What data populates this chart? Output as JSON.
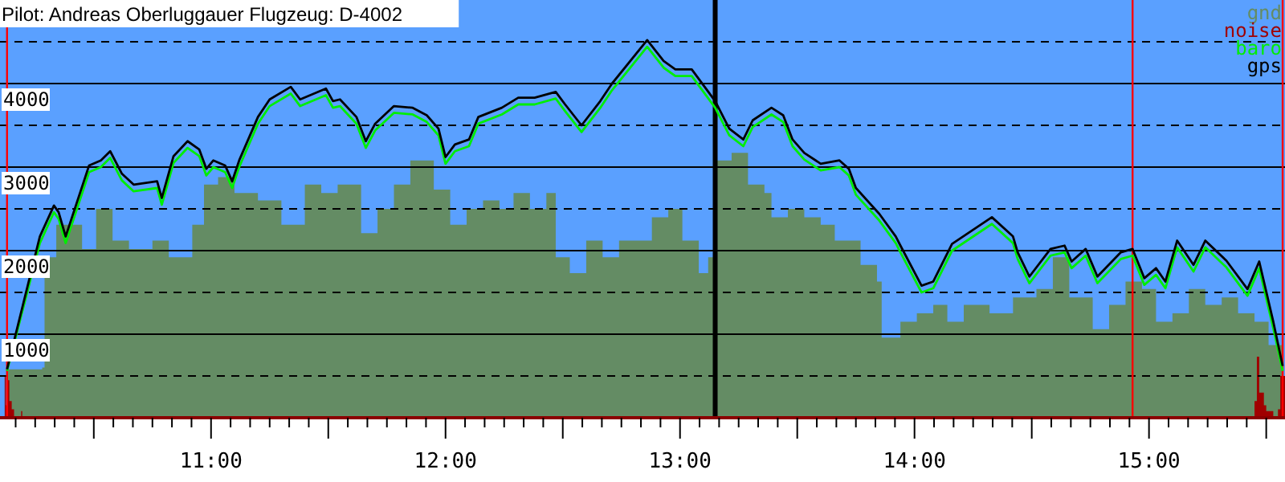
{
  "chart_data": {
    "type": "line",
    "title": "Pilot: Andreas Oberluggauer Flugzeug: D-4002",
    "xlim": [
      10.1,
      15.58
    ],
    "ylim": [
      0,
      5000
    ],
    "xticks": [
      {
        "value": 10.1667,
        "label": null
      },
      {
        "value": 10.25,
        "label": null
      },
      {
        "value": 10.3333,
        "label": null
      },
      {
        "value": 10.4167,
        "label": null
      },
      {
        "value": 10.5,
        "label": null
      },
      {
        "value": 10.5833,
        "label": null
      },
      {
        "value": 10.6667,
        "label": null
      },
      {
        "value": 10.75,
        "label": null
      },
      {
        "value": 10.8333,
        "label": null
      },
      {
        "value": 10.9167,
        "label": null
      },
      {
        "value": 11,
        "label": "11:00"
      },
      {
        "value": 11.0833,
        "label": null
      },
      {
        "value": 11.1667,
        "label": null
      },
      {
        "value": 11.25,
        "label": null
      },
      {
        "value": 11.3333,
        "label": null
      },
      {
        "value": 11.4167,
        "label": null
      },
      {
        "value": 11.5,
        "label": null
      },
      {
        "value": 11.5833,
        "label": null
      },
      {
        "value": 11.6667,
        "label": null
      },
      {
        "value": 11.75,
        "label": null
      },
      {
        "value": 11.8333,
        "label": null
      },
      {
        "value": 11.9167,
        "label": null
      },
      {
        "value": 12,
        "label": "12:00"
      },
      {
        "value": 12.0833,
        "label": null
      },
      {
        "value": 12.1667,
        "label": null
      },
      {
        "value": 12.25,
        "label": null
      },
      {
        "value": 12.3333,
        "label": null
      },
      {
        "value": 12.4167,
        "label": null
      },
      {
        "value": 12.5,
        "label": null
      },
      {
        "value": 12.5833,
        "label": null
      },
      {
        "value": 12.6667,
        "label": null
      },
      {
        "value": 12.75,
        "label": null
      },
      {
        "value": 12.8333,
        "label": null
      },
      {
        "value": 12.9167,
        "label": null
      },
      {
        "value": 13,
        "label": "13:00"
      },
      {
        "value": 13.0833,
        "label": null
      },
      {
        "value": 13.1667,
        "label": null
      },
      {
        "value": 13.25,
        "label": null
      },
      {
        "value": 13.3333,
        "label": null
      },
      {
        "value": 13.4167,
        "label": null
      },
      {
        "value": 13.5,
        "label": null
      },
      {
        "value": 13.5833,
        "label": null
      },
      {
        "value": 13.6667,
        "label": null
      },
      {
        "value": 13.75,
        "label": null
      },
      {
        "value": 13.8333,
        "label": null
      },
      {
        "value": 13.9167,
        "label": null
      },
      {
        "value": 14,
        "label": "14:00"
      },
      {
        "value": 14.0833,
        "label": null
      },
      {
        "value": 14.1667,
        "label": null
      },
      {
        "value": 14.25,
        "label": null
      },
      {
        "value": 14.3333,
        "label": null
      },
      {
        "value": 14.4167,
        "label": null
      },
      {
        "value": 14.5,
        "label": null
      },
      {
        "value": 14.5833,
        "label": null
      },
      {
        "value": 14.6667,
        "label": null
      },
      {
        "value": 14.75,
        "label": null
      },
      {
        "value": 14.8333,
        "label": null
      },
      {
        "value": 14.9167,
        "label": null
      },
      {
        "value": 15,
        "label": "15:00"
      },
      {
        "value": 15.0833,
        "label": null
      },
      {
        "value": 15.1667,
        "label": null
      },
      {
        "value": 15.25,
        "label": null
      },
      {
        "value": 15.3333,
        "label": null
      },
      {
        "value": 15.4167,
        "label": null
      },
      {
        "value": 15.5,
        "label": null
      }
    ],
    "yticks": [
      {
        "value": 500,
        "label": null
      },
      1000,
      {
        "value": 1500,
        "label": null
      },
      2000,
      {
        "value": 2500,
        "label": null
      },
      3000,
      {
        "value": 3500,
        "label": null
      },
      4000,
      {
        "value": 4500,
        "label": null
      }
    ],
    "grid": "y",
    "legend": "top right",
    "line_style": "solid",
    "marker": "none",
    "ref_lines": [
      {
        "axis": "x",
        "value": 13.15,
        "color": "#000000"
      },
      {
        "axis": "x",
        "value": 10.13,
        "color": "#ff0000"
      },
      {
        "axis": "x",
        "value": 14.93,
        "color": "#ff0000"
      },
      {
        "axis": "x",
        "value": 15.57,
        "color": "#ff0000"
      }
    ],
    "series": [
      {
        "name": "gnd",
        "type": "area",
        "color": "#648c64",
        "x": [
          10.13,
          10.28,
          10.29,
          10.34,
          10.45,
          10.51,
          10.58,
          10.65,
          10.75,
          10.82,
          10.89,
          10.92,
          10.97,
          11.03,
          11.1,
          11.2,
          11.3,
          11.4,
          11.47,
          11.54,
          11.64,
          11.71,
          11.78,
          11.85,
          11.9,
          11.95,
          12.02,
          12.09,
          12.16,
          12.23,
          12.29,
          12.36,
          12.43,
          12.47,
          12.53,
          12.6,
          12.67,
          12.74,
          12.81,
          12.88,
          12.95,
          13.01,
          13.08,
          13.12,
          13.15,
          13.22,
          13.29,
          13.36,
          13.39,
          13.46,
          13.53,
          13.6,
          13.66,
          13.77,
          13.84,
          13.86,
          13.94,
          14.01,
          14.08,
          14.14,
          14.21,
          14.32,
          14.42,
          14.52,
          14.59,
          14.66,
          14.76,
          14.83,
          14.9,
          14.97,
          15.03,
          15.1,
          15.17,
          15.24,
          15.31,
          15.38,
          15.45,
          15.51,
          15.57
        ],
        "values": [
          580,
          600,
          1920,
          2310,
          2020,
          2500,
          2120,
          2020,
          2120,
          1920,
          1920,
          2310,
          2790,
          2880,
          2690,
          2600,
          2310,
          2790,
          2690,
          2790,
          2210,
          2500,
          2790,
          3080,
          3080,
          2730,
          2310,
          2500,
          2600,
          2500,
          2690,
          2500,
          2690,
          1920,
          1730,
          2120,
          1920,
          2120,
          2120,
          2400,
          2500,
          2120,
          1730,
          1920,
          3080,
          3170,
          2790,
          2690,
          2400,
          2500,
          2400,
          2310,
          2120,
          1830,
          1630,
          960,
          1150,
          1250,
          1350,
          1150,
          1350,
          1250,
          1440,
          1540,
          1920,
          1440,
          1060,
          1350,
          1630,
          1540,
          1150,
          1250,
          1540,
          1350,
          1440,
          1250,
          1150,
          870,
          580
        ]
      },
      {
        "name": "noise",
        "type": "area",
        "color": "#a00000",
        "x": [
          10.1,
          10.12,
          10.125,
          10.13,
          10.14,
          10.15,
          10.16,
          10.19,
          10.195,
          10.2,
          15.44,
          15.45,
          15.46,
          15.47,
          15.49,
          15.5,
          15.53,
          15.55,
          15.56,
          15.58
        ],
        "values": [
          0,
          500,
          150,
          450,
          200,
          100,
          0,
          80,
          0,
          0,
          0,
          200,
          730,
          300,
          150,
          80,
          0,
          100,
          500,
          0
        ]
      },
      {
        "name": "baro",
        "color": "#00ee00",
        "x": [
          10.13,
          10.27,
          10.33,
          10.35,
          10.38,
          10.48,
          10.53,
          10.57,
          10.62,
          10.67,
          10.77,
          10.79,
          10.84,
          10.9,
          10.95,
          10.98,
          11.01,
          11.06,
          11.09,
          11.12,
          11.2,
          11.25,
          11.34,
          11.38,
          11.49,
          11.52,
          11.55,
          11.62,
          11.66,
          11.7,
          11.78,
          11.86,
          11.92,
          11.97,
          12,
          12.04,
          12.1,
          12.14,
          12.24,
          12.31,
          12.38,
          12.47,
          12.51,
          12.58,
          12.66,
          12.71,
          12.86,
          12.93,
          12.98,
          13.05,
          13.1,
          13.15,
          13.21,
          13.27,
          13.31,
          13.39,
          13.44,
          13.48,
          13.53,
          13.6,
          13.68,
          13.72,
          13.75,
          13.85,
          13.92,
          13.94,
          14.03,
          14.08,
          14.16,
          14.33,
          14.42,
          14.44,
          14.49,
          14.58,
          14.64,
          14.67,
          14.73,
          14.78,
          14.88,
          14.93,
          14.98,
          15.03,
          15.07,
          15.12,
          15.19,
          15.24,
          15.33,
          15.42,
          15.47,
          15.53,
          15.57
        ],
        "values": [
          560,
          2090,
          2460,
          2380,
          2090,
          2940,
          3000,
          3110,
          2840,
          2710,
          2750,
          2550,
          3050,
          3230,
          3130,
          2900,
          3000,
          2940,
          2750,
          3000,
          3520,
          3730,
          3880,
          3730,
          3860,
          3710,
          3730,
          3520,
          3230,
          3440,
          3650,
          3630,
          3540,
          3380,
          3040,
          3190,
          3250,
          3520,
          3630,
          3750,
          3750,
          3820,
          3670,
          3420,
          3710,
          3920,
          4440,
          4190,
          4090,
          4090,
          3900,
          3710,
          3380,
          3250,
          3480,
          3630,
          3540,
          3250,
          3090,
          2960,
          3000,
          2900,
          2670,
          2360,
          2090,
          1980,
          1500,
          1550,
          2000,
          2320,
          2090,
          1900,
          1610,
          1940,
          1980,
          1790,
          1940,
          1610,
          1900,
          1940,
          1590,
          1710,
          1550,
          2040,
          1750,
          2040,
          1800,
          1460,
          1790,
          1070,
          560
        ]
      },
      {
        "name": "gps",
        "color": "#000000",
        "x": [
          10.13,
          10.27,
          10.33,
          10.35,
          10.38,
          10.48,
          10.53,
          10.57,
          10.62,
          10.67,
          10.77,
          10.79,
          10.84,
          10.9,
          10.95,
          10.98,
          11.01,
          11.06,
          11.09,
          11.12,
          11.2,
          11.25,
          11.34,
          11.38,
          11.49,
          11.52,
          11.55,
          11.62,
          11.66,
          11.7,
          11.78,
          11.86,
          11.92,
          11.97,
          12,
          12.04,
          12.1,
          12.14,
          12.24,
          12.31,
          12.38,
          12.47,
          12.51,
          12.58,
          12.66,
          12.71,
          12.86,
          12.93,
          12.98,
          13.05,
          13.1,
          13.15,
          13.21,
          13.27,
          13.31,
          13.39,
          13.44,
          13.48,
          13.53,
          13.6,
          13.68,
          13.72,
          13.75,
          13.85,
          13.92,
          13.94,
          14.03,
          14.08,
          14.16,
          14.33,
          14.42,
          14.44,
          14.49,
          14.58,
          14.64,
          14.67,
          14.73,
          14.78,
          14.88,
          14.93,
          14.98,
          15.03,
          15.07,
          15.12,
          15.19,
          15.24,
          15.33,
          15.42,
          15.47,
          15.53,
          15.57
        ],
        "values": [
          580,
          2170,
          2540,
          2460,
          2170,
          3020,
          3080,
          3190,
          2920,
          2790,
          2830,
          2630,
          3130,
          3310,
          3210,
          2980,
          3080,
          3020,
          2830,
          3080,
          3600,
          3810,
          3960,
          3810,
          3940,
          3790,
          3810,
          3600,
          3310,
          3520,
          3730,
          3710,
          3620,
          3460,
          3120,
          3270,
          3330,
          3600,
          3710,
          3830,
          3830,
          3900,
          3750,
          3500,
          3790,
          4000,
          4520,
          4270,
          4170,
          4170,
          3980,
          3790,
          3460,
          3330,
          3560,
          3710,
          3620,
          3330,
          3170,
          3040,
          3080,
          2980,
          2750,
          2440,
          2170,
          2060,
          1580,
          1630,
          2080,
          2400,
          2170,
          1980,
          1690,
          2020,
          2060,
          1870,
          2020,
          1690,
          1980,
          2020,
          1670,
          1790,
          1630,
          2120,
          1830,
          2120,
          1880,
          1540,
          1870,
          1150,
          620
        ]
      }
    ]
  }
}
